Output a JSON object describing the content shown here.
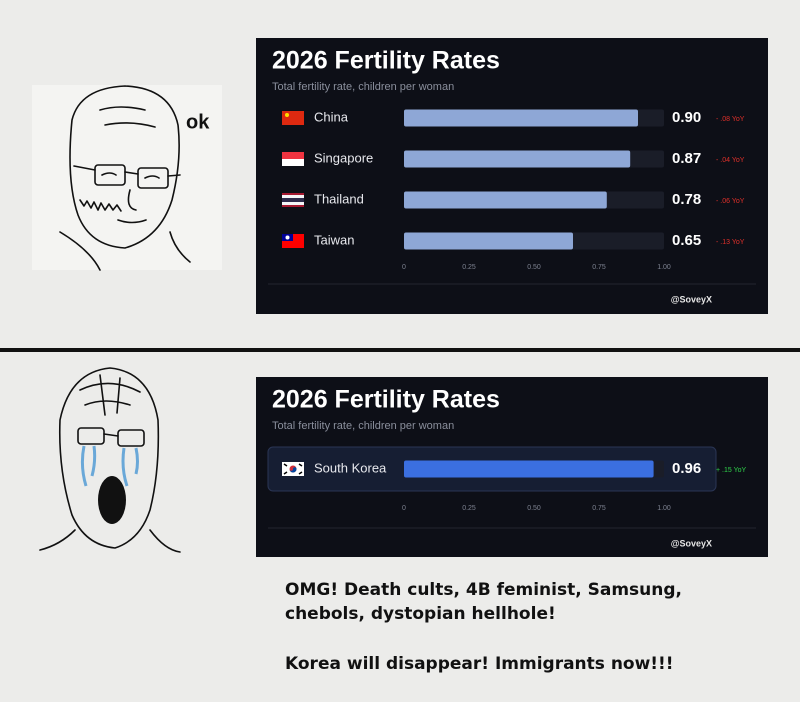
{
  "chart_data": [
    {
      "type": "bar",
      "orientation": "horizontal",
      "title": "2026 Fertility Rates",
      "subtitle": "Total fertility rate, children per woman",
      "categories": [
        "China",
        "Singapore",
        "Thailand",
        "Taiwan"
      ],
      "values": [
        0.9,
        0.87,
        0.78,
        0.65
      ],
      "value_labels": [
        "0.90",
        "0.87",
        "0.78",
        "0.65"
      ],
      "annotations": [
        "- .08 YoY",
        "- .04 YoY",
        "- .06 YoY",
        "- .13 YoY"
      ],
      "annotation_color": "#e0302a",
      "color": "#8ea7d6",
      "xlim": [
        0,
        1
      ],
      "xticks": [
        0,
        0.25,
        {
          "value": 0.5,
          "label": "0.50"
        },
        0.75,
        {
          "value": 1,
          "label": "1.00"
        }
      ],
      "credit": "@SoveyX",
      "highlight": false
    },
    {
      "type": "bar",
      "orientation": "horizontal",
      "title": "2026 Fertility Rates",
      "subtitle": "Total fertility rate, children per woman",
      "categories": [
        "South Korea"
      ],
      "values": [
        0.96
      ],
      "value_labels": [
        "0.96"
      ],
      "annotations": [
        "+ .15 YoY"
      ],
      "annotation_color": "#2fd24a",
      "color": "#3b6fe0",
      "xlim": [
        0,
        1
      ],
      "xticks": [
        0,
        0.25,
        {
          "value": 0.5,
          "label": "0.50"
        },
        0.75,
        {
          "value": 1,
          "label": "1.00"
        }
      ],
      "credit": "@SoveyX",
      "highlight": true
    }
  ],
  "top_panel": {
    "label": "ok"
  },
  "caption": {
    "line1": "OMG!  Death cults, 4B feminist, Samsung,",
    "line2": "chebols, dystopian hellhole!",
    "line3": "Korea will disappear!  Immigrants now!!!"
  }
}
